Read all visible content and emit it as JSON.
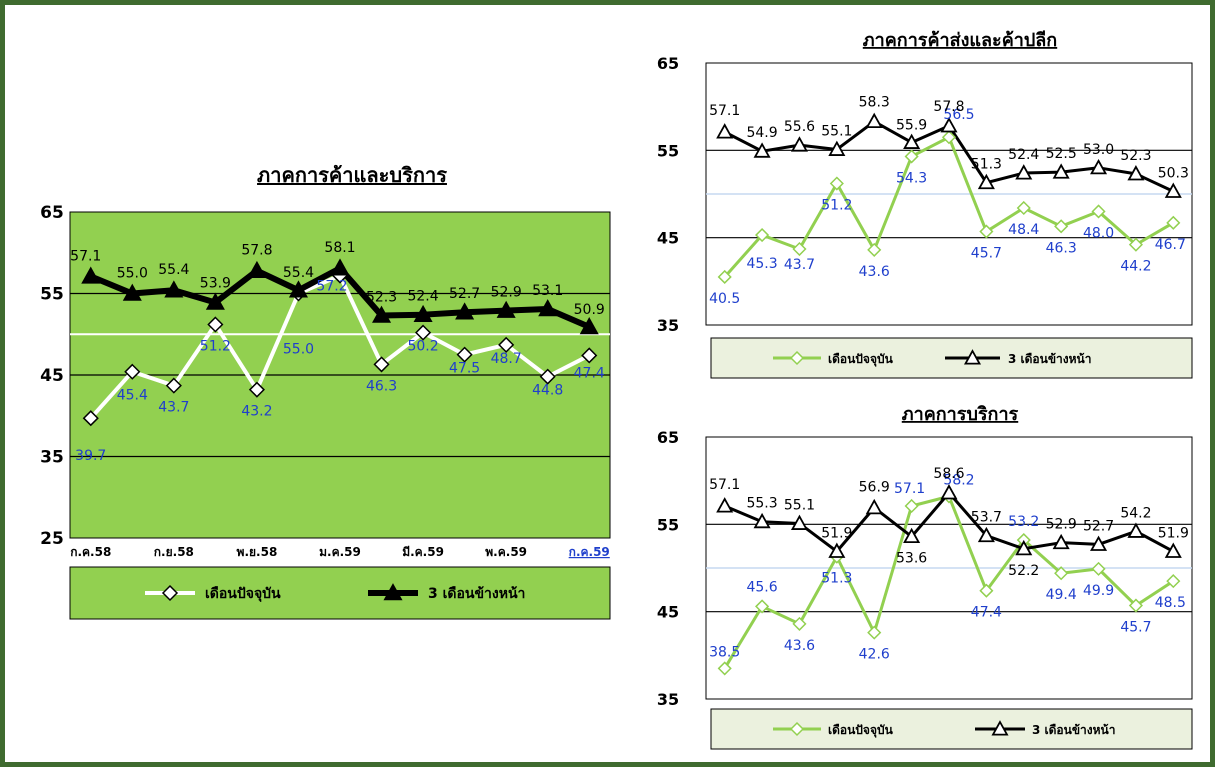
{
  "chart_data": [
    {
      "type": "line",
      "title": "ภาคการค้าและบริการ",
      "ylim": [
        25,
        65
      ],
      "yticks": [
        25,
        35,
        45,
        55,
        65
      ],
      "x_tick_labels": [
        "ก.ค.58",
        "ก.ย.58",
        "พ.ย.58",
        "ม.ค.59",
        "มี.ค.59",
        "พ.ค.59",
        "ก.ค.59"
      ],
      "legend_position": "bottom",
      "background_color": "#92d050",
      "highlight_level": 50,
      "series": [
        {
          "name": "เดือนปัจจุบัน",
          "color": "#ffffff",
          "marker": "diamond",
          "values": [
            39.7,
            45.4,
            43.7,
            51.2,
            43.2,
            55.0,
            57.2,
            46.3,
            50.2,
            47.5,
            48.7,
            44.8,
            47.4
          ],
          "labels": [
            "39.7",
            "45.4",
            "43.7",
            "51.2",
            "43.2",
            "55.0",
            "57.2",
            "46.3",
            "50.2",
            "47.5",
            "48.7",
            "44.8",
            "47.4"
          ]
        },
        {
          "name": "3 เดือนข้างหน้า",
          "color": "#000000",
          "marker": "triangle",
          "values": [
            57.1,
            55.0,
            55.4,
            53.9,
            57.8,
            55.4,
            58.1,
            52.3,
            52.4,
            52.7,
            52.9,
            53.1,
            50.9
          ],
          "labels": [
            "57.1",
            "55.0",
            "55.4",
            "53.9",
            "57.8",
            "55.4",
            "58.1",
            "52.3",
            "52.4",
            "52.7",
            "52.9",
            "53.1",
            "50.9"
          ]
        }
      ]
    },
    {
      "type": "line",
      "title": "ภาคการค้าส่งและค้าปลีก",
      "ylim": [
        35,
        65
      ],
      "yticks": [
        35,
        45,
        55,
        65
      ],
      "legend_position": "bottom",
      "highlight_level": 50,
      "series": [
        {
          "name": "เดือนปัจจุบัน",
          "color": "#92d050",
          "marker": "diamond",
          "values": [
            40.5,
            45.3,
            43.7,
            51.2,
            43.6,
            54.3,
            56.5,
            45.7,
            48.4,
            46.3,
            48.0,
            44.2,
            46.7
          ],
          "labels": [
            "40.5",
            "45.3",
            "43.7",
            "51.2",
            "43.6",
            "54.3",
            "56.5",
            "45.7",
            "48.4",
            "46.3",
            "48.0",
            "44.2",
            "46.7"
          ]
        },
        {
          "name": "3 เดือนข้างหน้า",
          "color": "#000000",
          "marker": "triangle",
          "values": [
            57.1,
            54.9,
            55.6,
            55.1,
            58.3,
            55.9,
            57.8,
            51.3,
            52.4,
            52.5,
            53.0,
            52.3,
            50.3
          ],
          "labels": [
            "57.1",
            "54.9",
            "55.6",
            "55.1",
            "58.3",
            "55.9",
            "57.8",
            "51.3",
            "52.4",
            "52.5",
            "53.0",
            "52.3",
            "50.3"
          ]
        }
      ]
    },
    {
      "type": "line",
      "title": "ภาคการบริการ",
      "ylim": [
        35,
        65
      ],
      "yticks": [
        35,
        45,
        55,
        65
      ],
      "legend_position": "bottom",
      "highlight_level": 50,
      "series": [
        {
          "name": "เดือนปัจจุบัน",
          "color": "#92d050",
          "marker": "diamond",
          "values": [
            38.5,
            45.6,
            43.6,
            51.3,
            42.6,
            57.1,
            58.2,
            47.4,
            53.2,
            49.4,
            49.9,
            45.7,
            48.5
          ],
          "labels": [
            "38.5",
            "45.6",
            "43.6",
            "51.3",
            "42.6",
            "57.1",
            "58.2",
            "47.4",
            "53.2",
            "49.4",
            "49.9",
            "45.7",
            "48.5"
          ]
        },
        {
          "name": "3 เดือนข้างหน้า",
          "color": "#000000",
          "marker": "triangle",
          "values": [
            57.1,
            55.3,
            55.1,
            51.9,
            56.9,
            53.6,
            58.6,
            53.7,
            52.2,
            52.9,
            52.7,
            54.2,
            51.9
          ],
          "labels": [
            "57.1",
            "55.3",
            "55.1",
            "51.9",
            "56.9",
            "53.6",
            "58.6",
            "53.7",
            "52.2",
            "52.9",
            "52.7",
            "54.2",
            "51.9"
          ]
        }
      ]
    }
  ]
}
